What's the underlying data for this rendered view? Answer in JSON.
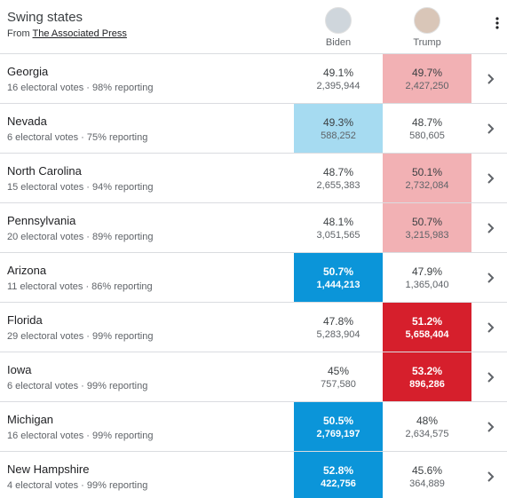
{
  "header": {
    "title": "Swing states",
    "source_prefix": "From",
    "source": "The Associated Press",
    "candidates": [
      "Biden",
      "Trump"
    ]
  },
  "rows": [
    {
      "state": "Georgia",
      "details": "16 electoral votes · 98% reporting",
      "cells": [
        {
          "pct": "49.1%",
          "votes": "2,395,944",
          "color": null,
          "text_color": null
        },
        {
          "pct": "49.7%",
          "votes": "2,427,250",
          "color": "#f2b1b4",
          "text_color": null
        }
      ]
    },
    {
      "state": "Nevada",
      "details": "6 electoral votes · 75% reporting",
      "cells": [
        {
          "pct": "49.3%",
          "votes": "588,252",
          "color": "#a6dbf1",
          "text_color": null
        },
        {
          "pct": "48.7%",
          "votes": "580,605",
          "color": null,
          "text_color": null
        }
      ]
    },
    {
      "state": "North Carolina",
      "details": "15 electoral votes · 94% reporting",
      "cells": [
        {
          "pct": "48.7%",
          "votes": "2,655,383",
          "color": null,
          "text_color": null
        },
        {
          "pct": "50.1%",
          "votes": "2,732,084",
          "color": "#f2b1b4",
          "text_color": null
        }
      ]
    },
    {
      "state": "Pennsylvania",
      "details": "20 electoral votes · 89% reporting",
      "cells": [
        {
          "pct": "48.1%",
          "votes": "3,051,565",
          "color": null,
          "text_color": null
        },
        {
          "pct": "50.7%",
          "votes": "3,215,983",
          "color": "#f2b1b4",
          "text_color": null
        }
      ]
    },
    {
      "state": "Arizona",
      "details": "11 electoral votes · 86% reporting",
      "cells": [
        {
          "pct": "50.7%",
          "votes": "1,444,213",
          "color": "#0b95d9",
          "text_color": "#ffffff"
        },
        {
          "pct": "47.9%",
          "votes": "1,365,040",
          "color": null,
          "text_color": null
        }
      ]
    },
    {
      "state": "Florida",
      "details": "29 electoral votes · 99% reporting",
      "cells": [
        {
          "pct": "47.8%",
          "votes": "5,283,904",
          "color": null,
          "text_color": null
        },
        {
          "pct": "51.2%",
          "votes": "5,658,404",
          "color": "#d61f2c",
          "text_color": "#ffffff"
        }
      ]
    },
    {
      "state": "Iowa",
      "details": "6 electoral votes · 99% reporting",
      "cells": [
        {
          "pct": "45%",
          "votes": "757,580",
          "color": null,
          "text_color": null
        },
        {
          "pct": "53.2%",
          "votes": "896,286",
          "color": "#d61f2c",
          "text_color": "#ffffff"
        }
      ]
    },
    {
      "state": "Michigan",
      "details": "16 electoral votes · 99% reporting",
      "cells": [
        {
          "pct": "50.5%",
          "votes": "2,769,197",
          "color": "#0b95d9",
          "text_color": "#ffffff"
        },
        {
          "pct": "48%",
          "votes": "2,634,575",
          "color": null,
          "text_color": null
        }
      ]
    },
    {
      "state": "New Hampshire",
      "details": "4 electoral votes · 99% reporting",
      "cells": [
        {
          "pct": "52.8%",
          "votes": "422,756",
          "color": "#0b95d9",
          "text_color": "#ffffff"
        },
        {
          "pct": "45.6%",
          "votes": "364,889",
          "color": null,
          "text_color": null
        }
      ]
    }
  ]
}
